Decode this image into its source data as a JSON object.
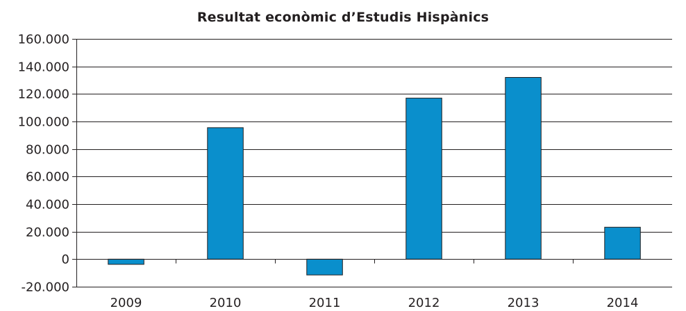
{
  "chart_data": {
    "type": "bar",
    "title": "Resultat econòmic d’Estudis Hispànics",
    "xlabel": "",
    "ylabel": "",
    "categories": [
      "2009",
      "2010",
      "2011",
      "2012",
      "2013",
      "2014"
    ],
    "values": [
      -3800,
      95500,
      -11500,
      117000,
      132000,
      23200
    ],
    "ylim": [
      -20000,
      160000
    ],
    "yticks": [
      -20000,
      0,
      20000,
      40000,
      60000,
      80000,
      100000,
      120000,
      140000,
      160000
    ],
    "ytick_labels": [
      "-20.000",
      "0",
      "20.000",
      "40.000",
      "60.000",
      "80.000",
      "100.000",
      "120.000",
      "140.000",
      "160.000"
    ],
    "grid": true,
    "legend": "none",
    "colors": {
      "bar": "#0a8fcc",
      "bar_edge": "#231f20",
      "grid": "#231f20",
      "text": "#231f20"
    }
  }
}
